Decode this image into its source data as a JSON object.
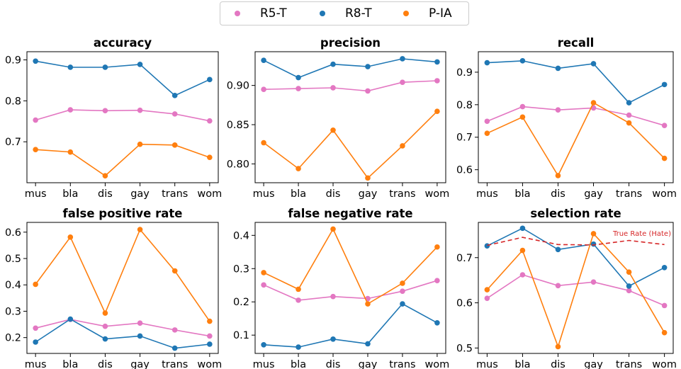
{
  "legend": {
    "items": [
      {
        "label": "R5-T",
        "color": "#e377c2"
      },
      {
        "label": "R8-T",
        "color": "#1f77b4"
      },
      {
        "label": "P-IA",
        "color": "#ff7f0e"
      }
    ]
  },
  "colors": {
    "R5-T": "#e377c2",
    "R8-T": "#1f77b4",
    "P-IA": "#ff7f0e",
    "true_rate": "#d62728"
  },
  "chart_data": [
    {
      "type": "line",
      "title": "accuracy",
      "categories": [
        "mus",
        "bla",
        "dis",
        "gay",
        "trans",
        "wom"
      ],
      "ylim": [
        0.6,
        0.92
      ],
      "yticks": [
        0.7,
        0.8,
        0.9
      ],
      "ytick_labels": [
        "0.7",
        "0.8",
        "0.9"
      ],
      "grid": false,
      "series": [
        {
          "name": "R5-T",
          "values": [
            0.753,
            0.778,
            0.776,
            0.777,
            0.768,
            0.751
          ]
        },
        {
          "name": "R8-T",
          "values": [
            0.897,
            0.882,
            0.882,
            0.889,
            0.813,
            0.852
          ]
        },
        {
          "name": "P-IA",
          "values": [
            0.681,
            0.675,
            0.617,
            0.694,
            0.692,
            0.662
          ]
        }
      ]
    },
    {
      "type": "line",
      "title": "precision",
      "categories": [
        "mus",
        "bla",
        "dis",
        "gay",
        "trans",
        "wom"
      ],
      "ylim": [
        0.776,
        0.943
      ],
      "yticks": [
        0.8,
        0.85,
        0.9
      ],
      "ytick_labels": [
        "0.80",
        "0.85",
        "0.90"
      ],
      "grid": false,
      "series": [
        {
          "name": "R5-T",
          "values": [
            0.895,
            0.896,
            0.897,
            0.893,
            0.904,
            0.906
          ]
        },
        {
          "name": "R8-T",
          "values": [
            0.932,
            0.91,
            0.927,
            0.924,
            0.934,
            0.93
          ]
        },
        {
          "name": "P-IA",
          "values": [
            0.827,
            0.794,
            0.843,
            0.782,
            0.823,
            0.867
          ]
        }
      ]
    },
    {
      "type": "line",
      "title": "recall",
      "categories": [
        "mus",
        "bla",
        "dis",
        "gay",
        "trans",
        "wom"
      ],
      "ylim": [
        0.56,
        0.963
      ],
      "yticks": [
        0.6,
        0.7,
        0.8,
        0.9
      ],
      "ytick_labels": [
        "0.6",
        "0.7",
        "0.8",
        "0.9"
      ],
      "grid": false,
      "series": [
        {
          "name": "R5-T",
          "values": [
            0.749,
            0.794,
            0.784,
            0.79,
            0.768,
            0.736
          ]
        },
        {
          "name": "R8-T",
          "values": [
            0.929,
            0.935,
            0.912,
            0.926,
            0.806,
            0.862
          ]
        },
        {
          "name": "P-IA",
          "values": [
            0.712,
            0.762,
            0.582,
            0.806,
            0.744,
            0.635
          ]
        }
      ]
    },
    {
      "type": "line",
      "title": "false positive rate",
      "categories": [
        "mus",
        "bla",
        "dis",
        "gay",
        "trans",
        "wom"
      ],
      "ylim": [
        0.14,
        0.637
      ],
      "yticks": [
        0.2,
        0.3,
        0.4,
        0.5,
        0.6
      ],
      "ytick_labels": [
        "0.2",
        "0.3",
        "0.4",
        "0.5",
        "0.6"
      ],
      "grid": false,
      "series": [
        {
          "name": "R5-T",
          "values": [
            0.236,
            0.269,
            0.243,
            0.255,
            0.229,
            0.206
          ]
        },
        {
          "name": "R8-T",
          "values": [
            0.183,
            0.27,
            0.195,
            0.206,
            0.16,
            0.175
          ]
        },
        {
          "name": "P-IA",
          "values": [
            0.402,
            0.581,
            0.293,
            0.61,
            0.453,
            0.262
          ]
        }
      ]
    },
    {
      "type": "line",
      "title": "false negative rate",
      "categories": [
        "mus",
        "bla",
        "dis",
        "gay",
        "trans",
        "wom"
      ],
      "ylim": [
        0.045,
        0.439
      ],
      "yticks": [
        0.1,
        0.2,
        0.3,
        0.4
      ],
      "ytick_labels": [
        "0.1",
        "0.2",
        "0.3",
        "0.4"
      ],
      "grid": false,
      "series": [
        {
          "name": "R5-T",
          "values": [
            0.251,
            0.205,
            0.216,
            0.21,
            0.232,
            0.264
          ]
        },
        {
          "name": "R8-T",
          "values": [
            0.071,
            0.064,
            0.088,
            0.074,
            0.194,
            0.137
          ]
        },
        {
          "name": "P-IA",
          "values": [
            0.288,
            0.238,
            0.419,
            0.194,
            0.256,
            0.365
          ]
        }
      ]
    },
    {
      "type": "line",
      "title": "selection rate",
      "categories": [
        "mus",
        "bla",
        "dis",
        "gay",
        "trans",
        "wom"
      ],
      "ylim": [
        0.488,
        0.778
      ],
      "yticks": [
        0.5,
        0.6,
        0.7
      ],
      "ytick_labels": [
        "0.5",
        "0.6",
        "0.7"
      ],
      "grid": false,
      "annotation": "True Rate (Hate)",
      "series": [
        {
          "name": "R5-T",
          "values": [
            0.61,
            0.662,
            0.638,
            0.646,
            0.627,
            0.594
          ]
        },
        {
          "name": "R8-T",
          "values": [
            0.726,
            0.765,
            0.718,
            0.73,
            0.637,
            0.678
          ]
        },
        {
          "name": "P-IA",
          "values": [
            0.629,
            0.716,
            0.503,
            0.753,
            0.668,
            0.534
          ]
        },
        {
          "name": "True Rate (Hate)",
          "values": [
            0.727,
            0.745,
            0.729,
            0.728,
            0.738,
            0.729
          ]
        }
      ]
    }
  ]
}
